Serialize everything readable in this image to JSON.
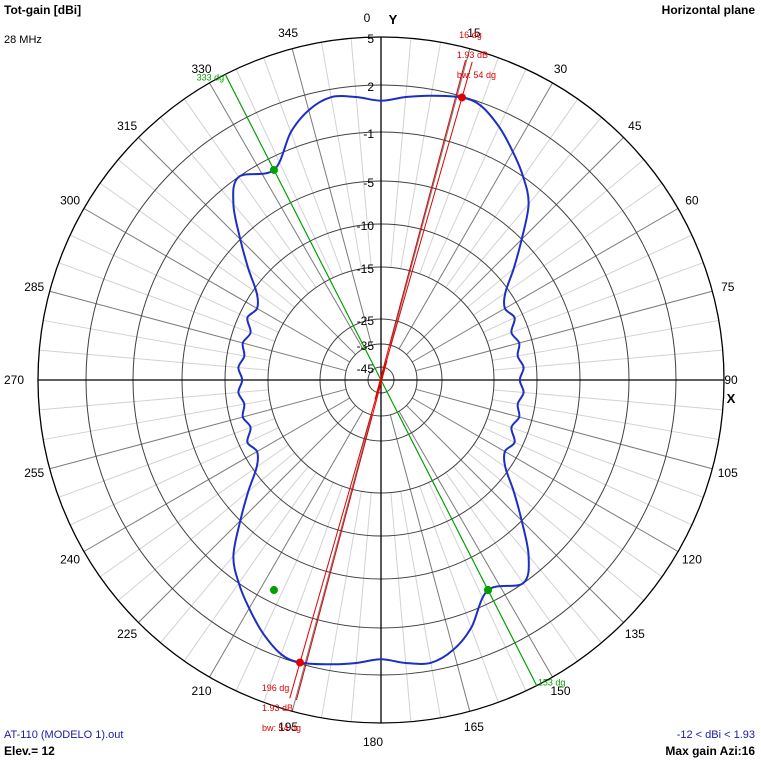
{
  "header": {
    "quantity": "Tot-gain [dBi]",
    "frequency": "28 MHz",
    "plane": "Horizontal plane"
  },
  "footer": {
    "file": "AT-110 (MODELO 1).out",
    "elevation": "Elev.= 12",
    "range": "-12 < dBi < 1.93",
    "max_gain": "Max gain Azi:16"
  },
  "axes": {
    "y_label": "Y",
    "x_label": "X"
  },
  "chart_data": {
    "type": "polar",
    "angle_ticks": [
      "0",
      "15",
      "30",
      "45",
      "60",
      "75",
      "90",
      "105",
      "120",
      "135",
      "150",
      "165",
      "180",
      "195",
      "210",
      "225",
      "240",
      "255",
      "270",
      "285",
      "300",
      "315",
      "330",
      "345"
    ],
    "radial_ticks": [
      "5",
      "2",
      "-1",
      "-5",
      "-10",
      "-15",
      "-25",
      "-35",
      "-45"
    ],
    "radial_tick_values": [
      5,
      2,
      -1,
      -5,
      -10,
      -15,
      -25,
      -35,
      -45
    ],
    "pattern_color": "#1c2fc4",
    "marker_colors": {
      "max": "#e00000",
      "beamwidth": "#00a000"
    },
    "series": [
      {
        "azimuth_deg": [
          0,
          5,
          10,
          16,
          20,
          25,
          30,
          35,
          40,
          45,
          50,
          55,
          60,
          65,
          70,
          75,
          80,
          85,
          90,
          95,
          100,
          105,
          110,
          115,
          120,
          125,
          130,
          135,
          140,
          145,
          153,
          160,
          165,
          170,
          175,
          180,
          185,
          190,
          196,
          200,
          205,
          210,
          215,
          220,
          225,
          230,
          235,
          240,
          245,
          250,
          255,
          260,
          265,
          270,
          275,
          280,
          285,
          290,
          295,
          300,
          305,
          310,
          315,
          320,
          325,
          333,
          340,
          345,
          350,
          355
        ],
        "gain_dbi": [
          1.0,
          1.3,
          1.6,
          1.93,
          1.8,
          1.0,
          0.0,
          -1.0,
          -2.5,
          -5.0,
          -8.0,
          -10.5,
          -11.5,
          -11.0,
          -12.0,
          -11.5,
          -12.0,
          -11.5,
          -12.0,
          -11.5,
          -12.0,
          -11.5,
          -12.0,
          -11.0,
          -11.5,
          -10.5,
          -8.0,
          -5.0,
          -2.5,
          -1.0,
          -2.0,
          0.0,
          1.0,
          1.5,
          1.3,
          1.0,
          1.3,
          1.6,
          1.93,
          1.8,
          1.0,
          0.0,
          -1.0,
          -2.5,
          -5.0,
          -8.0,
          -10.5,
          -11.5,
          -11.0,
          -12.0,
          -11.5,
          -12.0,
          -11.5,
          -12.0,
          -11.5,
          -12.0,
          -11.5,
          -12.0,
          -11.0,
          -11.5,
          -10.5,
          -8.0,
          -5.0,
          -2.5,
          -1.0,
          -2.0,
          0.0,
          1.0,
          1.5,
          1.3
        ]
      }
    ],
    "max_markers": [
      {
        "azimuth_deg": 16,
        "gain_dbi": 1.93,
        "label_angle": "16 dg",
        "label_gain": "1.93 dB",
        "label_bw": "bw: 54 dg"
      },
      {
        "azimuth_deg": 196,
        "gain_dbi": 1.93,
        "label_angle": "196 dg",
        "label_gain": "1.93 dB",
        "label_bw": "bw: 54 dg"
      }
    ],
    "beamwidth_lines": [
      {
        "azimuth_deg": 333,
        "gain_dbi": -2.0,
        "label": "333 dg"
      },
      {
        "azimuth_deg": 153,
        "gain_dbi": -2.0,
        "label": "153 dg"
      }
    ]
  }
}
